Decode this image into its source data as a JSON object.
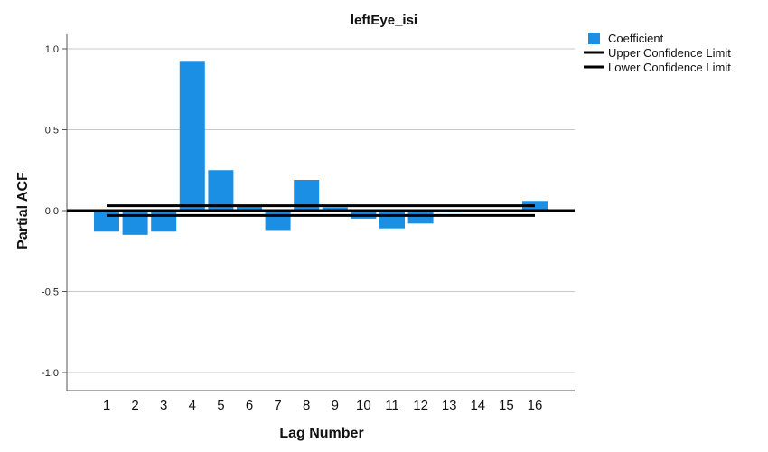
{
  "chart_data": {
    "type": "bar",
    "title": "leftEye_isi",
    "xlabel": "Lag Number",
    "ylabel": "Partial ACF",
    "ylim": [
      -1.1,
      1.1
    ],
    "yticks": [
      1.0,
      0.5,
      0.0,
      -0.5,
      -1.0
    ],
    "ytick_labels": [
      "1.0",
      "0.5",
      "0.0",
      "-0.5",
      "-1.0"
    ],
    "grid": true,
    "legend_position": "top-right",
    "categories": [
      "1",
      "2",
      "3",
      "4",
      "5",
      "6",
      "7",
      "8",
      "9",
      "10",
      "11",
      "12",
      "13",
      "14",
      "15",
      "16"
    ],
    "series": [
      {
        "name": "Coefficient",
        "type": "bar",
        "color": "#1a8fe3",
        "values": [
          -0.13,
          -0.15,
          -0.13,
          0.92,
          0.25,
          0.03,
          -0.12,
          0.19,
          0.02,
          -0.05,
          -0.11,
          -0.08,
          -0.01,
          0.0,
          0.0,
          0.06
        ]
      },
      {
        "name": "Upper Confidence Limit",
        "type": "line",
        "color": "#000000",
        "values": [
          0.03,
          0.03,
          0.03,
          0.03,
          0.03,
          0.03,
          0.03,
          0.03,
          0.03,
          0.03,
          0.03,
          0.03,
          0.03,
          0.03,
          0.03,
          0.03
        ]
      },
      {
        "name": "Lower Confidence Limit",
        "type": "line",
        "color": "#000000",
        "values": [
          -0.03,
          -0.03,
          -0.03,
          -0.03,
          -0.03,
          -0.03,
          -0.03,
          -0.03,
          -0.03,
          -0.03,
          -0.03,
          -0.03,
          -0.03,
          -0.03,
          -0.03,
          -0.03
        ]
      }
    ]
  }
}
